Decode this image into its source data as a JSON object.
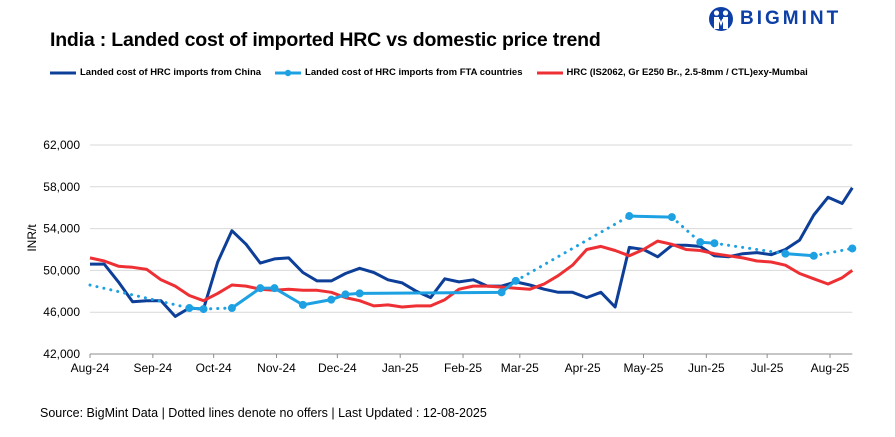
{
  "brand": {
    "name": "BIGMINT",
    "color": "#0d3fa6"
  },
  "title": "India : Landed cost of imported HRC vs domestic price trend",
  "source": "Source: BigMint Data | Dotted lines denote no offers | Last Updated : 12-08-2025",
  "chart_data": {
    "type": "line",
    "title": "India : Landed cost of imported HRC vs domestic price trend",
    "ylabel": "INR/t",
    "xlabel": "",
    "ylim": [
      42000,
      62000
    ],
    "yticks": [
      "42,000",
      "46,000",
      "50,000",
      "54,000",
      "58,000",
      "62,000"
    ],
    "ytick_values": [
      42000,
      46000,
      50000,
      54000,
      58000,
      62000
    ],
    "xticks": [
      "Aug-24",
      "Sep-24",
      "Oct-24",
      "Nov-24",
      "Dec-24",
      "Jan-25",
      "Feb-25",
      "Mar-25",
      "Apr-25",
      "May-25",
      "Jun-25",
      "Jul-25",
      "Aug-25"
    ],
    "xtick_dates": [
      "2024-08-01",
      "2024-09-01",
      "2024-10-01",
      "2024-11-01",
      "2024-12-01",
      "2025-01-01",
      "2025-02-01",
      "2025-03-01",
      "2025-04-01",
      "2025-05-01",
      "2025-06-01",
      "2025-07-01",
      "2025-08-01"
    ],
    "xlim": [
      "2024-08-01",
      "2025-08-12"
    ],
    "grid": "horizontal",
    "legend_placement": "top",
    "x": [
      "2024-08-01",
      "2024-08-08",
      "2024-08-15",
      "2024-08-22",
      "2024-08-29",
      "2024-09-05",
      "2024-09-12",
      "2024-09-19",
      "2024-09-26",
      "2024-10-03",
      "2024-10-10",
      "2024-10-17",
      "2024-10-24",
      "2024-10-31",
      "2024-11-07",
      "2024-11-14",
      "2024-11-21",
      "2024-11-28",
      "2024-12-05",
      "2024-12-12",
      "2024-12-19",
      "2024-12-26",
      "2025-01-02",
      "2025-01-09",
      "2025-01-16",
      "2025-01-23",
      "2025-01-30",
      "2025-02-06",
      "2025-02-13",
      "2025-02-20",
      "2025-02-27",
      "2025-03-06",
      "2025-03-13",
      "2025-03-20",
      "2025-03-27",
      "2025-04-03",
      "2025-04-10",
      "2025-04-17",
      "2025-04-24",
      "2025-05-01",
      "2025-05-08",
      "2025-05-15",
      "2025-05-22",
      "2025-05-29",
      "2025-06-05",
      "2025-06-12",
      "2025-06-19",
      "2025-06-26",
      "2025-07-03",
      "2025-07-10",
      "2025-07-17",
      "2025-07-24",
      "2025-07-31",
      "2025-08-07",
      "2025-08-12"
    ],
    "series": [
      {
        "name": "Landed cost of HRC imports from China",
        "color": "#0d3f99",
        "values": [
          50600,
          50600,
          48900,
          47000,
          47100,
          47100,
          45600,
          46400,
          46300,
          50800,
          53800,
          52500,
          50700,
          51100,
          51200,
          49800,
          49000,
          49000,
          49700,
          50200,
          49800,
          49100,
          48800,
          48000,
          47400,
          49200,
          48900,
          49100,
          48500,
          48500,
          48900,
          48600,
          48200,
          47900,
          47900,
          47400,
          47900,
          46500,
          52200,
          52000,
          51300,
          52400,
          52400,
          52300,
          51400,
          51300,
          51600,
          51700,
          51500,
          52000,
          52900,
          55300,
          57000,
          56400,
          57900
        ]
      },
      {
        "name": "Landed cost of HRC imports from FTA countries",
        "color": "#1da1e2",
        "points": [
          {
            "x": "2024-08-01",
            "v": 48600,
            "marker": false,
            "next": "dotted"
          },
          {
            "x": "2024-09-19",
            "v": 46400,
            "marker": true,
            "next": "solid"
          },
          {
            "x": "2024-09-26",
            "v": 46300,
            "marker": true,
            "next": "dotted"
          },
          {
            "x": "2024-10-10",
            "v": 46400,
            "marker": true,
            "next": "solid"
          },
          {
            "x": "2024-10-24",
            "v": 48300,
            "marker": true,
            "next": "solid"
          },
          {
            "x": "2024-10-31",
            "v": 48300,
            "marker": true,
            "next": "solid"
          },
          {
            "x": "2024-11-14",
            "v": 46700,
            "marker": true,
            "next": "solid"
          },
          {
            "x": "2024-11-28",
            "v": 47200,
            "marker": true,
            "next": "solid"
          },
          {
            "x": "2024-12-05",
            "v": 47700,
            "marker": true,
            "next": "solid"
          },
          {
            "x": "2024-12-12",
            "v": 47800,
            "marker": true,
            "next": "solid"
          },
          {
            "x": "2025-02-20",
            "v": 47900,
            "marker": true,
            "next": "solid"
          },
          {
            "x": "2025-02-27",
            "v": 49000,
            "marker": true,
            "next": "dotted"
          },
          {
            "x": "2025-04-24",
            "v": 55200,
            "marker": true,
            "next": "solid"
          },
          {
            "x": "2025-05-15",
            "v": 55100,
            "marker": true,
            "next": "dotted"
          },
          {
            "x": "2025-05-29",
            "v": 52700,
            "marker": true,
            "next": "solid"
          },
          {
            "x": "2025-06-05",
            "v": 52600,
            "marker": true,
            "next": "dotted"
          },
          {
            "x": "2025-07-10",
            "v": 51600,
            "marker": true,
            "next": "solid"
          },
          {
            "x": "2025-07-24",
            "v": 51400,
            "marker": true,
            "next": "dotted"
          },
          {
            "x": "2025-08-12",
            "v": 52100,
            "marker": true,
            "next": "none"
          }
        ]
      },
      {
        "name": "HRC (IS2062, Gr E250 Br., 2.5-8mm / CTL)exy-Mumbai",
        "color": "#ee3034",
        "values": [
          51200,
          50900,
          50400,
          50300,
          50100,
          49100,
          48500,
          47600,
          47100,
          47800,
          48600,
          48500,
          48200,
          48100,
          48200,
          48100,
          48100,
          47900,
          47400,
          47100,
          46600,
          46700,
          46500,
          46600,
          46600,
          47200,
          48200,
          48500,
          48500,
          48400,
          48300,
          48200,
          48700,
          49500,
          50500,
          52000,
          52300,
          51900,
          51400,
          52000,
          52800,
          52500,
          52000,
          51900,
          51600,
          51400,
          51200,
          50900,
          50800,
          50500,
          49700,
          49200,
          48700,
          49300,
          50000
        ]
      }
    ]
  }
}
